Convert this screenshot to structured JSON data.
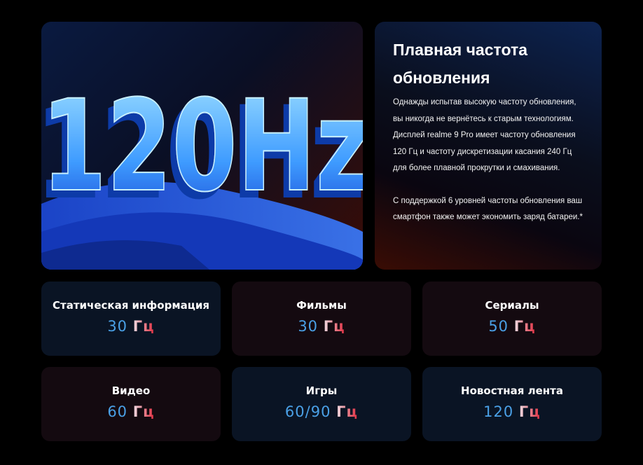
{
  "hero": {
    "image_text": "120Hz"
  },
  "info": {
    "title": "Плавная частота обновления",
    "paragraph1": "Однажды испытав высокую частоту обновления, вы никогда не вернётесь к старым технологиям. Дисплей realme 9 Pro имеет частоту обновления 120 Гц и частоту дискретизации касания 240 Гц для более плавной прокрутки и смахивания.",
    "paragraph2": "С поддержкой 6 уровней частоты обновления ваш смартфон также может экономить заряд батареи.*"
  },
  "stats": [
    {
      "label": "Статическая информация",
      "value": "30",
      "unit": "Гц"
    },
    {
      "label": "Фильмы",
      "value": "30",
      "unit": "Гц"
    },
    {
      "label": "Сериалы",
      "value": "50",
      "unit": "Гц"
    },
    {
      "label": "Видео",
      "value": "60",
      "unit": "Гц"
    },
    {
      "label": "Игры",
      "value": "60/90",
      "unit": "Гц"
    },
    {
      "label": "Новостная лента",
      "value": "120",
      "unit": "Гц"
    }
  ],
  "colors": {
    "number": "#4aa0e6",
    "unit_red": "#e0283a"
  }
}
